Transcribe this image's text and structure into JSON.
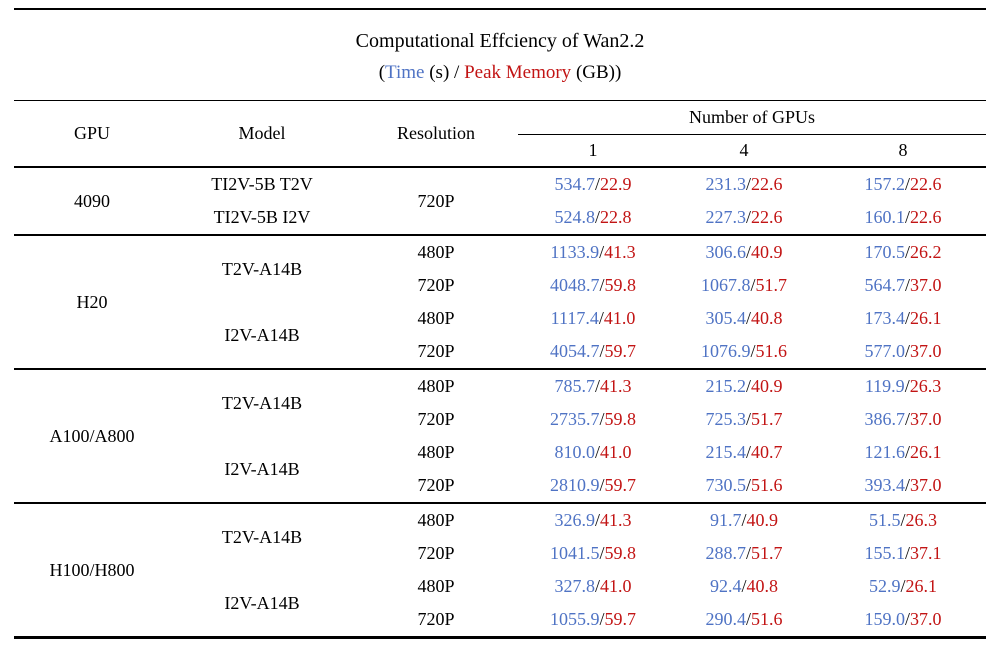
{
  "colors": {
    "time": "#4f73c4",
    "memory": "#c21414",
    "rule": "#000000",
    "background": "#ffffff"
  },
  "subtitle_parts": {
    "open": "(",
    "time_label": "Time",
    "middle": " (s) / ",
    "memory_label": "Peak Memory",
    "tail": " (GB))"
  },
  "chart_data": {
    "type": "table",
    "title": "Computational Effciency of Wan2.2",
    "subtitle": "(Time (s) / Peak Memory (GB))",
    "value_format": "Time(s)/PeakMemory(GB)",
    "headers": {
      "gpu": "GPU",
      "model": "Model",
      "resolution": "Resolution",
      "group": "Number of GPUs",
      "gpu_counts": [
        "1",
        "4",
        "8"
      ]
    },
    "groups": [
      {
        "gpu": "4090",
        "rows": [
          {
            "model": "TI2V-5B T2V",
            "model_rowspan": 1,
            "resolution": "720P",
            "resolution_rowspan": 2,
            "values": [
              [
                "534.7",
                "22.9"
              ],
              [
                "231.3",
                "22.6"
              ],
              [
                "157.2",
                "22.6"
              ]
            ]
          },
          {
            "model": "TI2V-5B I2V",
            "model_rowspan": 1,
            "values": [
              [
                "524.8",
                "22.8"
              ],
              [
                "227.3",
                "22.6"
              ],
              [
                "160.1",
                "22.6"
              ]
            ]
          }
        ]
      },
      {
        "gpu": "H20",
        "rows": [
          {
            "model": "T2V-A14B",
            "model_rowspan": 2,
            "resolution": "480P",
            "values": [
              [
                "1133.9",
                "41.3"
              ],
              [
                "306.6",
                "40.9"
              ],
              [
                "170.5",
                "26.2"
              ]
            ]
          },
          {
            "resolution": "720P",
            "values": [
              [
                "4048.7",
                "59.8"
              ],
              [
                "1067.8",
                "51.7"
              ],
              [
                "564.7",
                "37.0"
              ]
            ]
          },
          {
            "model": "I2V-A14B",
            "model_rowspan": 2,
            "resolution": "480P",
            "values": [
              [
                "1117.4",
                "41.0"
              ],
              [
                "305.4",
                "40.8"
              ],
              [
                "173.4",
                "26.1"
              ]
            ]
          },
          {
            "resolution": "720P",
            "values": [
              [
                "4054.7",
                "59.7"
              ],
              [
                "1076.9",
                "51.6"
              ],
              [
                "577.0",
                "37.0"
              ]
            ]
          }
        ]
      },
      {
        "gpu": "A100/A800",
        "rows": [
          {
            "model": "T2V-A14B",
            "model_rowspan": 2,
            "resolution": "480P",
            "values": [
              [
                "785.7",
                "41.3"
              ],
              [
                "215.2",
                "40.9"
              ],
              [
                "119.9",
                "26.3"
              ]
            ]
          },
          {
            "resolution": "720P",
            "values": [
              [
                "2735.7",
                "59.8"
              ],
              [
                "725.3",
                "51.7"
              ],
              [
                "386.7",
                "37.0"
              ]
            ]
          },
          {
            "model": "I2V-A14B",
            "model_rowspan": 2,
            "resolution": "480P",
            "values": [
              [
                "810.0",
                "41.0"
              ],
              [
                "215.4",
                "40.7"
              ],
              [
                "121.6",
                "26.1"
              ]
            ]
          },
          {
            "resolution": "720P",
            "values": [
              [
                "2810.9",
                "59.7"
              ],
              [
                "730.5",
                "51.6"
              ],
              [
                "393.4",
                "37.0"
              ]
            ]
          }
        ]
      },
      {
        "gpu": "H100/H800",
        "rows": [
          {
            "model": "T2V-A14B",
            "model_rowspan": 2,
            "resolution": "480P",
            "values": [
              [
                "326.9",
                "41.3"
              ],
              [
                "91.7",
                "40.9"
              ],
              [
                "51.5",
                "26.3"
              ]
            ]
          },
          {
            "resolution": "720P",
            "values": [
              [
                "1041.5",
                "59.8"
              ],
              [
                "288.7",
                "51.7"
              ],
              [
                "155.1",
                "37.1"
              ]
            ]
          },
          {
            "model": "I2V-A14B",
            "model_rowspan": 2,
            "resolution": "480P",
            "values": [
              [
                "327.8",
                "41.0"
              ],
              [
                "92.4",
                "40.8"
              ],
              [
                "52.9",
                "26.1"
              ]
            ]
          },
          {
            "resolution": "720P",
            "values": [
              [
                "1055.9",
                "59.7"
              ],
              [
                "290.4",
                "51.6"
              ],
              [
                "159.0",
                "37.0"
              ]
            ]
          }
        ]
      }
    ]
  }
}
